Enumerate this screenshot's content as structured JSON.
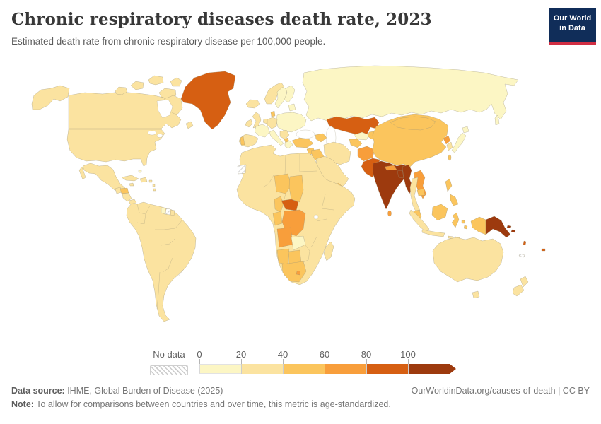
{
  "header": {
    "title": "Chronic respiratory diseases death rate, 2023",
    "subtitle": "Estimated death rate from chronic respiratory disease per 100,000 people."
  },
  "logo": {
    "line1": "Our World",
    "line2": "in Data",
    "bg_color": "#102d59",
    "accent_color": "#d12e43"
  },
  "legend": {
    "no_data_label": "No data",
    "ticks": [
      "0",
      "20",
      "40",
      "60",
      "80",
      "100"
    ]
  },
  "footer": {
    "source_label": "Data source:",
    "source_text": " IHME, Global Burden of Disease (2025)",
    "link_text": "OurWorldinData.org/causes-of-death | CC BY",
    "note_label": "Note:",
    "note_text": " To allow for comparisons between countries and over time, this metric is age-standardized."
  },
  "chart_data": {
    "type": "choropleth_map",
    "title": "Chronic respiratory diseases death rate",
    "year": 2023,
    "unit": "deaths per 100,000 people (age-standardized)",
    "source": "IHME, Global Burden of Disease (2025)",
    "legend_position": "bottom",
    "color_scale": {
      "scheme": "YlOrBr",
      "bins": [
        {
          "bucket": "0-20",
          "range": [
            0,
            20
          ],
          "color": "#FCF6C4"
        },
        {
          "bucket": "20-40",
          "range": [
            20,
            40
          ],
          "color": "#FBE3A0"
        },
        {
          "bucket": "40-60",
          "range": [
            40,
            60
          ],
          "color": "#FBC55D"
        },
        {
          "bucket": "60-80",
          "range": [
            60,
            80
          ],
          "color": "#F89E3B"
        },
        {
          "bucket": "80-100",
          "range": [
            80,
            100
          ],
          "color": "#D65F12"
        },
        {
          "bucket": "100+",
          "range": [
            100,
            140
          ],
          "color": "#9D3A0E"
        }
      ],
      "colors": {
        "0-20": "#FCF6C4",
        "20-40": "#FBE3A0",
        "40-60": "#FBC55D",
        "60-80": "#F89E3B",
        "80-100": "#D65F12",
        "100+": "#9D3A0E"
      },
      "no_data": {
        "label": "No data",
        "pattern": "diagonal-hatch",
        "hatch_color": "#c9c9c9"
      }
    },
    "regions": {
      "alaska": "20-40",
      "canada": "20-40",
      "greenland": "80-100",
      "usa": "20-40",
      "mexico": "20-40",
      "guatemala": "20-40",
      "honduras": "40-60",
      "nicaragua-costa-rica": "20-40",
      "panama": "20-40",
      "cuba": "20-40",
      "jamaica": "20-40",
      "hispaniola": "20-40",
      "puerto-rico": "20-40",
      "bahamas": "0-20",
      "lesser-antilles": "20-40",
      "south-america": "20-40",
      "guyana": "0-20",
      "suriname": "no-data",
      "french-guiana": "20-40",
      "iceland": "20-40",
      "norway": "20-40",
      "sweden": "0-20",
      "finland": "0-20",
      "baltics": "0-20",
      "uk": "20-40",
      "ireland": "20-40",
      "france": "0-20",
      "spain": "20-40",
      "portugal": "40-60",
      "germany": "20-40",
      "denmark": "40-60",
      "benelux": "20-40",
      "central-europe": "0-20",
      "italy": "0-20",
      "balkans": "20-40",
      "albania-macedonia": "40-60",
      "greece": "0-20",
      "russia": "0-20",
      "kazakhstan": "80-100",
      "uzbekistan": "0-20",
      "turkmenistan": "40-60",
      "kyrgyz-tajik": "40-60",
      "turkey": "40-60",
      "caucasus": "40-60",
      "syria": "40-60",
      "iraq": "40-60",
      "jordan-israel": "20-40",
      "iran": "20-40",
      "arabia": "20-40",
      "yemen": "40-60",
      "afghanistan": "60-80",
      "pakistan": "80-100",
      "india": "100+",
      "nepal": "60-80",
      "bangladesh": "100+",
      "myanmar": "100+",
      "sri-lanka": "60-80",
      "china": "40-60",
      "mongolia": "40-60",
      "taiwan": "40-60",
      "north-korea": "60-80",
      "south-korea": "20-40",
      "japan": "0-20",
      "vietnam-laos": "60-80",
      "cambodia": "40-60",
      "thailand": "20-40",
      "malaysia": "40-60",
      "sumatra": "20-40",
      "borneo": "40-60",
      "java": "20-40",
      "sulawesi": "40-60",
      "lesser-sunda": "20-40",
      "moluccas": "40-60",
      "philippines": "40-60",
      "west-papua": "40-60",
      "papua-new-guinea": "100+",
      "solomon-islands": "100+",
      "vanuatu": "80-100",
      "fiji": "80-100",
      "new-caledonia": "no-data",
      "australia": "20-40",
      "tasmania": "20-40",
      "new-zealand": "20-40",
      "africa-other": "20-40",
      "western-sahara": "no-data",
      "niger": "40-60",
      "chad": "40-60",
      "cameroon": "40-60",
      "central-african-republic": "80-100",
      "dr-congo": "60-80",
      "congo-gabon": "40-60",
      "angola": "60-80",
      "zambia": "0-20",
      "namibia": "40-60",
      "botswana": "40-60",
      "south-africa": "40-60",
      "lesotho": "60-80",
      "madagascar": "20-40"
    }
  }
}
